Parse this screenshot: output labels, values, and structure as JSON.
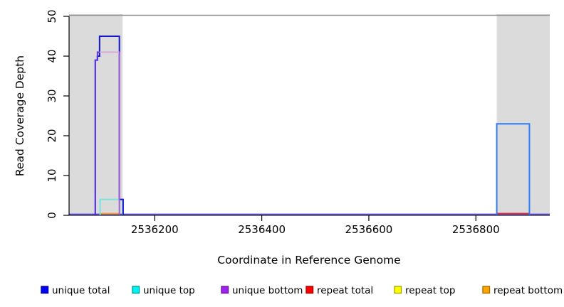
{
  "figure": {
    "background": "#ffffff",
    "panel_gray": "#DBDBDB",
    "top_border_color": "#8F8F8F",
    "axis_color": "#000000"
  },
  "chart_data": {
    "type": "line",
    "title": "",
    "xlabel": "Coordinate in Reference Genome",
    "ylabel": "Read Coverage Depth",
    "x_axis": {
      "min": 2536040,
      "max": 2536938,
      "ticks": [
        2536200,
        2536400,
        2536600,
        2536800
      ]
    },
    "y_axis": {
      "min": 0,
      "max": 50,
      "ticks": [
        0,
        10,
        20,
        30,
        40,
        50
      ]
    },
    "grid": "off",
    "legend_position": "bottom",
    "shaded_regions": [
      {
        "from": 2536040,
        "to": 2536140
      },
      {
        "from": 2536839,
        "to": 2536938
      }
    ],
    "series": [
      {
        "name": "unique total",
        "color": "#0000FF",
        "step_points": [
          [
            2536040,
            0
          ],
          [
            2536089,
            39
          ],
          [
            2536093,
            40
          ],
          [
            2536097,
            45
          ],
          [
            2536134,
            4
          ],
          [
            2536141,
            0
          ],
          [
            2536839,
            23
          ],
          [
            2536900,
            0
          ]
        ]
      },
      {
        "name": "unique top",
        "color": "#00FFFF",
        "step_points": [
          [
            2536040,
            0
          ],
          [
            2536098,
            4
          ],
          [
            2536140,
            0
          ],
          [
            2536839,
            23
          ],
          [
            2536900,
            0
          ]
        ]
      },
      {
        "name": "unique bottom",
        "color": "#A020F0",
        "step_points": [
          [
            2536040,
            0
          ],
          [
            2536089,
            39
          ],
          [
            2536093,
            41
          ],
          [
            2536134,
            0
          ]
        ]
      },
      {
        "name": "repeat total",
        "color": "#FF0000",
        "step_points": [
          [
            2536040,
            0
          ],
          [
            2536839,
            0.4
          ],
          [
            2536900,
            0
          ]
        ]
      },
      {
        "name": "repeat top",
        "color": "#FFFF00",
        "step_points": [
          [
            2536040,
            0
          ]
        ]
      },
      {
        "name": "repeat bottom",
        "color": "#FFA500",
        "step_points": [
          [
            2536040,
            0
          ],
          [
            2536098,
            0.4
          ],
          [
            2536135,
            0
          ]
        ]
      }
    ],
    "render_lines": [
      {
        "name": "baseline-coverage-line",
        "color": "#5A50DC",
        "width": 2,
        "points": [
          [
            2536040,
            0.25
          ],
          [
            2536938,
            0.25
          ]
        ]
      },
      {
        "name": "repeat-total-line",
        "color": "#E03040",
        "width": 2,
        "points": [
          [
            2536839,
            0.45
          ],
          [
            2536900,
            0.45
          ]
        ]
      },
      {
        "name": "repeat-bottom-line",
        "color": "#FF9F28",
        "width": 2,
        "points": [
          [
            2536098,
            0.45
          ],
          [
            2536135,
            0.45
          ]
        ]
      },
      {
        "name": "unique-top-box",
        "color": "#7CE2DE",
        "width": 2,
        "points": [
          [
            2536098,
            0
          ],
          [
            2536098,
            4
          ],
          [
            2536140,
            4
          ],
          [
            2536140,
            0
          ]
        ]
      },
      {
        "name": "right-peak-outline",
        "color": "#2E7CFE",
        "width": 2,
        "points": [
          [
            2536839,
            0
          ],
          [
            2536839,
            23
          ],
          [
            2536900,
            23
          ],
          [
            2536900,
            0
          ]
        ]
      },
      {
        "name": "unique-total-left-outline",
        "color": "#1717D2",
        "width": 2,
        "points": [
          [
            2536089,
            0
          ],
          [
            2536089,
            39
          ],
          [
            2536093,
            39
          ],
          [
            2536093,
            40
          ],
          [
            2536097,
            40
          ],
          [
            2536097,
            45
          ],
          [
            2536134,
            45
          ],
          [
            2536134,
            4
          ],
          [
            2536141,
            4
          ],
          [
            2536141,
            0
          ]
        ]
      },
      {
        "name": "unique-bottom-left-edge",
        "color": "#6036E0",
        "width": 2,
        "points": [
          [
            2536089,
            0
          ],
          [
            2536089,
            39
          ],
          [
            2536093,
            39
          ],
          [
            2536093,
            41
          ],
          [
            2536098,
            41
          ]
        ]
      },
      {
        "name": "unique-bottom-top-segment",
        "color": "#D8A9DC",
        "width": 2,
        "points": [
          [
            2536097,
            41
          ],
          [
            2536134,
            41
          ]
        ]
      },
      {
        "name": "unique-bottom-right-edge",
        "color": "#A55FD5",
        "width": 2,
        "points": [
          [
            2536134,
            41
          ],
          [
            2536134,
            0
          ]
        ]
      }
    ]
  },
  "legend": {
    "items": [
      {
        "label": "unique total",
        "fill": "#0000F5",
        "border": "#0000A8"
      },
      {
        "label": "unique top",
        "fill": "#00F2F2",
        "border": "#00A0A0"
      },
      {
        "label": "unique bottom",
        "fill": "#A020F0",
        "border": "#6E16A6"
      },
      {
        "label": "repeat total",
        "fill": "#FF0000",
        "border": "#A80000"
      },
      {
        "label": "repeat top",
        "fill": "#FFFF00",
        "border": "#A8A800"
      },
      {
        "label": "repeat bottom",
        "fill": "#FFA500",
        "border": "#A86E00"
      }
    ]
  }
}
